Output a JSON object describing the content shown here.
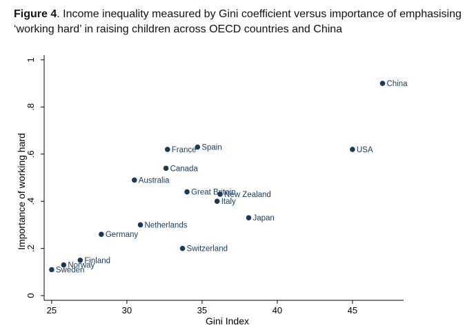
{
  "caption": {
    "figure_label": "Figure 4",
    "text": ". Income inequality measured by Gini coefficient versus importance of emphasising ‘working hard’ in raising children across OECD countries and China"
  },
  "colors": {
    "point": "#1a3a5c",
    "axis": "#000000",
    "background": "#ffffff"
  },
  "chart_data": {
    "type": "scatter",
    "title": "",
    "xlabel": "Gini Index",
    "ylabel": "Importance of working hard",
    "xlim": [
      24.5,
      48.4
    ],
    "ylim": [
      -0.02,
      1.02
    ],
    "xticks": [
      25,
      30,
      35,
      40,
      45
    ],
    "xtick_labels": [
      "25",
      "30",
      "35",
      "40",
      "45"
    ],
    "yticks": [
      0,
      0.2,
      0.4,
      0.6,
      0.8,
      1
    ],
    "ytick_labels": [
      "0",
      ".2",
      ".4",
      ".6",
      ".8",
      "1"
    ],
    "grid": false,
    "points": [
      {
        "label": "China",
        "x": 47.0,
        "y": 0.9
      },
      {
        "label": "USA",
        "x": 45.0,
        "y": 0.62
      },
      {
        "label": "France",
        "x": 32.7,
        "y": 0.62
      },
      {
        "label": "Spain",
        "x": 34.7,
        "y": 0.63
      },
      {
        "label": "Canada",
        "x": 32.6,
        "y": 0.54
      },
      {
        "label": "Australia",
        "x": 30.5,
        "y": 0.49
      },
      {
        "label": "Great Britain",
        "x": 34.0,
        "y": 0.44
      },
      {
        "label": "New Zealand",
        "x": 36.2,
        "y": 0.43
      },
      {
        "label": "Italy",
        "x": 36.0,
        "y": 0.4
      },
      {
        "label": "Japan",
        "x": 38.1,
        "y": 0.33
      },
      {
        "label": "Netherlands",
        "x": 30.9,
        "y": 0.3
      },
      {
        "label": "Germany",
        "x": 28.3,
        "y": 0.26
      },
      {
        "label": "Switzerland",
        "x": 33.7,
        "y": 0.2
      },
      {
        "label": "Finland",
        "x": 26.9,
        "y": 0.15
      },
      {
        "label": "Norway",
        "x": 25.8,
        "y": 0.13
      },
      {
        "label": "Sweden",
        "x": 25.0,
        "y": 0.11
      }
    ]
  }
}
